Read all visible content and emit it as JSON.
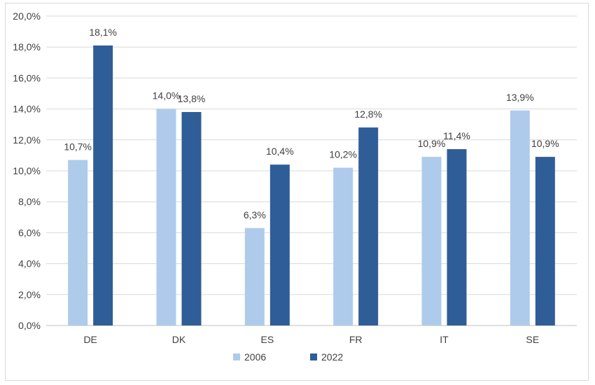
{
  "chart_data": {
    "type": "bar",
    "title": "",
    "xlabel": "",
    "ylabel": "",
    "categories": [
      "DE",
      "DK",
      "ES",
      "FR",
      "IT",
      "SE"
    ],
    "series": [
      {
        "name": "2006",
        "color": "#aecbeb",
        "values": [
          10.7,
          14.0,
          6.3,
          10.2,
          10.9,
          13.9
        ],
        "labels": [
          "10,7%",
          "14,0%",
          "6,3%",
          "10,2%",
          "10,9%",
          "13,9%"
        ]
      },
      {
        "name": "2022",
        "color": "#2f5d98",
        "values": [
          18.1,
          13.8,
          10.4,
          12.8,
          11.4,
          10.9
        ],
        "labels": [
          "18,1%",
          "13,8%",
          "10,4%",
          "12,8%",
          "11,4%",
          "10,9%"
        ]
      }
    ],
    "ylim": [
      0,
      20
    ],
    "yticks": [
      0,
      2,
      4,
      6,
      8,
      10,
      12,
      14,
      16,
      18,
      20
    ],
    "ytick_labels": [
      "0,0%",
      "2,0%",
      "4,0%",
      "6,0%",
      "8,0%",
      "10,0%",
      "12,0%",
      "14,0%",
      "16,0%",
      "18,0%",
      "20,0%"
    ],
    "grid": true,
    "legend_position": "bottom"
  }
}
